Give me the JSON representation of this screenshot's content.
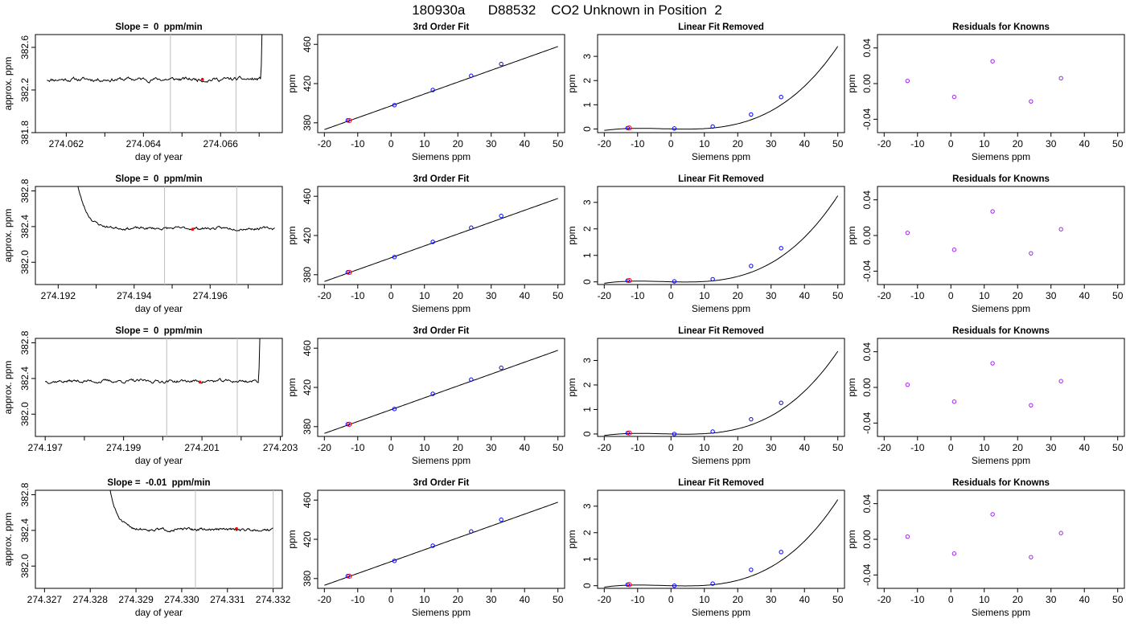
{
  "figure": {
    "title": "180930a      D88532    CO2 Unknown in Position  2"
  },
  "chart_data": [
    {
      "id": "r1-drift",
      "type": "line",
      "title": "Slope =  0  ppm/min",
      "xlabel": "day of year",
      "ylabel": "approx. ppm",
      "xlim": [
        274.0612,
        274.0676
      ],
      "ylim": [
        381.8,
        382.72
      ],
      "xticks": [
        274.062,
        274.063,
        274.064,
        274.065,
        274.066,
        274.067
      ],
      "xticklabels": [
        "274.062",
        "",
        "274.064",
        "",
        "274.066",
        ""
      ],
      "yticks": [
        381.8,
        382.2,
        382.6
      ],
      "yticklabels": [
        "381.8",
        "382.2",
        "382.6"
      ],
      "vlines": [
        274.0647,
        274.0664
      ],
      "highlight": {
        "x": 274.06553,
        "y": 382.3
      },
      "trace": {
        "x0": 274.0615,
        "x1": 274.0671,
        "level": 382.3,
        "noise": 0.012,
        "seed": 11,
        "rise_at": 274.06705,
        "rise_to": 382.9,
        "start_high": null
      }
    },
    {
      "id": "r2-drift",
      "type": "line",
      "title": "Slope =  0  ppm/min",
      "xlabel": "day of year",
      "ylabel": "approx. ppm",
      "xlim": [
        274.1914,
        274.1979
      ],
      "ylim": [
        381.75,
        382.85
      ],
      "xticks": [
        274.192,
        274.193,
        274.194,
        274.195,
        274.196,
        274.197
      ],
      "xticklabels": [
        "274.192",
        "",
        "274.194",
        "",
        "274.196",
        ""
      ],
      "yticks": [
        382.0,
        382.4,
        382.8
      ],
      "yticklabels": [
        "382.0",
        "382.4",
        "382.8"
      ],
      "vlines": [
        274.1948,
        274.1967
      ],
      "highlight": {
        "x": 274.19554,
        "y": 382.37
      },
      "trace": {
        "x0": 274.1925,
        "x1": 274.1977,
        "level": 382.38,
        "noise": 0.01,
        "seed": 23,
        "rise_at": null,
        "rise_to": null,
        "start_high": 382.9
      }
    },
    {
      "id": "r3-drift",
      "type": "line",
      "title": "Slope =  0  ppm/min",
      "xlabel": "day of year",
      "ylabel": "approx. ppm",
      "xlim": [
        274.19675,
        274.20305
      ],
      "ylim": [
        381.75,
        382.85
      ],
      "xticks": [
        274.197,
        274.198,
        274.199,
        274.2,
        274.201,
        274.202,
        274.203
      ],
      "xticklabels": [
        "274.197",
        "",
        "274.199",
        "",
        "274.201",
        "",
        "274.203"
      ],
      "yticks": [
        382.0,
        382.4,
        382.8
      ],
      "yticklabels": [
        "382.0",
        "382.4",
        "382.8"
      ],
      "vlines": [
        274.2001,
        274.2019
      ],
      "highlight": {
        "x": 274.20095,
        "y": 382.36
      },
      "trace": {
        "x0": 274.197,
        "x1": 274.2025,
        "level": 382.37,
        "noise": 0.012,
        "seed": 37,
        "rise_at": 274.20245,
        "rise_to": 382.95,
        "start_high": null
      }
    },
    {
      "id": "r4-drift",
      "type": "line",
      "title": "Slope =  -0.01  ppm/min",
      "xlabel": "day of year",
      "ylabel": "approx. ppm",
      "xlim": [
        274.3268,
        274.3322
      ],
      "ylim": [
        381.75,
        382.85
      ],
      "xticks": [
        274.327,
        274.328,
        274.329,
        274.33,
        274.331,
        274.332
      ],
      "xticklabels": [
        "274.327",
        "274.328",
        "274.329",
        "274.330",
        "274.331",
        "274.332"
      ],
      "yticks": [
        382.0,
        382.4,
        382.8
      ],
      "yticklabels": [
        "382.0",
        "382.4",
        "382.8"
      ],
      "vlines": [
        274.3303,
        274.332
      ],
      "highlight": {
        "x": 274.3312,
        "y": 382.42
      },
      "trace": {
        "x0": 274.3284,
        "x1": 274.332,
        "level": 382.41,
        "noise": 0.01,
        "seed": 51,
        "rise_at": null,
        "rise_to": null,
        "start_high": 382.95
      }
    },
    {
      "id": "r1-fit",
      "type": "scatter",
      "title": "3rd Order Fit",
      "xlabel": "Siemens ppm",
      "ylabel": "ppm",
      "xlim": [
        -22,
        52
      ],
      "ylim": [
        370,
        470
      ],
      "xticks": [
        -20,
        -10,
        0,
        10,
        20,
        30,
        40,
        50
      ],
      "yticks": [
        380,
        420,
        460
      ],
      "points": [
        [
          -13,
          382.5
        ],
        [
          1,
          398.0
        ],
        [
          12.5,
          413.5
        ],
        [
          24,
          428.0
        ],
        [
          33,
          440.0
        ]
      ],
      "highlight": [
        [
          -12.5,
          382.3
        ]
      ],
      "curve": {
        "type": "line",
        "slope": 1.21,
        "intercept": 397.3,
        "from": -20,
        "to": 50
      }
    },
    {
      "id": "r2-fit",
      "type": "scatter",
      "title": "3rd Order Fit",
      "xlabel": "Siemens ppm",
      "ylabel": "ppm",
      "xlim": [
        -22,
        52
      ],
      "ylim": [
        370,
        470
      ],
      "xticks": [
        -20,
        -10,
        0,
        10,
        20,
        30,
        40,
        50
      ],
      "yticks": [
        380,
        420,
        460
      ],
      "points": [
        [
          -13,
          382.5
        ],
        [
          1,
          398.0
        ],
        [
          12.5,
          413.5
        ],
        [
          24,
          428.0
        ],
        [
          33,
          440.0
        ]
      ],
      "highlight": [
        [
          -12.5,
          382.4
        ]
      ],
      "curve": {
        "type": "line",
        "slope": 1.21,
        "intercept": 397.3,
        "from": -20,
        "to": 50
      }
    },
    {
      "id": "r3-fit",
      "type": "scatter",
      "title": "3rd Order Fit",
      "xlabel": "Siemens ppm",
      "ylabel": "ppm",
      "xlim": [
        -22,
        52
      ],
      "ylim": [
        370,
        470
      ],
      "xticks": [
        -20,
        -10,
        0,
        10,
        20,
        30,
        40,
        50
      ],
      "yticks": [
        380,
        420,
        460
      ],
      "points": [
        [
          -13,
          382.5
        ],
        [
          1,
          398.0
        ],
        [
          12.5,
          413.5
        ],
        [
          24,
          428.0
        ],
        [
          33,
          440.0
        ]
      ],
      "highlight": [
        [
          -12.5,
          382.4
        ]
      ],
      "curve": {
        "type": "line",
        "slope": 1.21,
        "intercept": 397.3,
        "from": -20,
        "to": 50
      }
    },
    {
      "id": "r4-fit",
      "type": "scatter",
      "title": "3rd Order Fit",
      "xlabel": "Siemens ppm",
      "ylabel": "ppm",
      "xlim": [
        -22,
        52
      ],
      "ylim": [
        370,
        470
      ],
      "xticks": [
        -20,
        -10,
        0,
        10,
        20,
        30,
        40,
        50
      ],
      "yticks": [
        380,
        420,
        460
      ],
      "points": [
        [
          -13,
          382.5
        ],
        [
          1,
          398.0
        ],
        [
          12.5,
          413.5
        ],
        [
          24,
          428.0
        ],
        [
          33,
          440.0
        ]
      ],
      "highlight": [
        [
          -12.5,
          382.4
        ]
      ],
      "curve": {
        "type": "line",
        "slope": 1.21,
        "intercept": 397.3,
        "from": -20,
        "to": 50
      }
    },
    {
      "id": "r1-linrem",
      "type": "scatter",
      "title": "Linear Fit Removed",
      "xlabel": "Siemens ppm",
      "ylabel": "ppm",
      "xlim": [
        -22,
        52
      ],
      "ylim": [
        -0.15,
        3.9
      ],
      "xticks": [
        -20,
        -10,
        0,
        10,
        20,
        30,
        40,
        50
      ],
      "yticks": [
        0,
        1,
        2,
        3
      ],
      "points": [
        [
          -13,
          0.04
        ],
        [
          1,
          0.02
        ],
        [
          12.5,
          0.1
        ],
        [
          24,
          0.6
        ],
        [
          33,
          1.32
        ]
      ],
      "highlight": [
        [
          -12.5,
          0.04
        ]
      ],
      "curve": {
        "type": "poly",
        "coef": [
          0.0025,
          -0.003,
          0.000185,
          2.48e-05
        ],
        "from": -20,
        "to": 50
      }
    },
    {
      "id": "r2-linrem",
      "type": "scatter",
      "title": "Linear Fit Removed",
      "xlabel": "Siemens ppm",
      "ylabel": "ppm",
      "xlim": [
        -22,
        52
      ],
      "ylim": [
        -0.1,
        3.6
      ],
      "xticks": [
        -20,
        -10,
        0,
        10,
        20,
        30,
        40,
        50
      ],
      "yticks": [
        0,
        1,
        2,
        3
      ],
      "points": [
        [
          -13,
          0.05
        ],
        [
          1,
          0.02
        ],
        [
          12.5,
          0.1
        ],
        [
          24,
          0.6
        ],
        [
          33,
          1.27
        ]
      ],
      "highlight": [
        [
          -12.5,
          0.05
        ]
      ],
      "curve": {
        "type": "poly",
        "coef": [
          0.0025,
          -0.003,
          0.000185,
          2.35e-05
        ],
        "from": -20,
        "to": 50
      }
    },
    {
      "id": "r3-linrem",
      "type": "scatter",
      "title": "Linear Fit Removed",
      "xlabel": "Siemens ppm",
      "ylabel": "ppm",
      "xlim": [
        -22,
        52
      ],
      "ylim": [
        -0.1,
        3.9
      ],
      "xticks": [
        -20,
        -10,
        0,
        10,
        20,
        30,
        40,
        50
      ],
      "yticks": [
        0,
        1,
        2,
        3
      ],
      "points": [
        [
          -13,
          0.04
        ],
        [
          1,
          0.0
        ],
        [
          12.5,
          0.1
        ],
        [
          24,
          0.6
        ],
        [
          33,
          1.27
        ]
      ],
      "highlight": [
        [
          -12.5,
          0.04
        ]
      ],
      "curve": {
        "type": "poly",
        "coef": [
          0.0,
          -0.003,
          0.000185,
          2.45e-05
        ],
        "from": -20,
        "to": 50
      }
    },
    {
      "id": "r4-linrem",
      "type": "scatter",
      "title": "Linear Fit Removed",
      "xlabel": "Siemens ppm",
      "ylabel": "ppm",
      "xlim": [
        -22,
        52
      ],
      "ylim": [
        -0.1,
        3.6
      ],
      "xticks": [
        -20,
        -10,
        0,
        10,
        20,
        30,
        40,
        50
      ],
      "yticks": [
        0,
        1,
        2,
        3
      ],
      "points": [
        [
          -13,
          0.04
        ],
        [
          1,
          0.0
        ],
        [
          12.5,
          0.08
        ],
        [
          24,
          0.6
        ],
        [
          33,
          1.27
        ]
      ],
      "highlight": [
        [
          -12.5,
          0.04
        ]
      ],
      "curve": {
        "type": "poly",
        "coef": [
          0.0,
          -0.003,
          0.000185,
          2.35e-05
        ],
        "from": -20,
        "to": 50
      }
    },
    {
      "id": "r1-resid",
      "type": "scatter",
      "title": "Residuals for Knowns",
      "xlabel": "Siemens ppm",
      "ylabel": "ppm",
      "xlim": [
        -22,
        52
      ],
      "ylim": [
        -0.055,
        0.055
      ],
      "xticks": [
        -20,
        -10,
        0,
        10,
        20,
        30,
        40,
        50
      ],
      "yticks": [
        -0.04,
        0.0,
        0.04
      ],
      "yticklabels": [
        "-0.04",
        "0.00",
        "0.04"
      ],
      "points": [
        [
          -13,
          0.003
        ],
        [
          1,
          -0.015
        ],
        [
          12.5,
          0.025
        ],
        [
          24,
          -0.02
        ],
        [
          33,
          0.006
        ]
      ],
      "highlight": [],
      "curve": null
    },
    {
      "id": "r2-resid",
      "type": "scatter",
      "title": "Residuals for Knowns",
      "xlabel": "Siemens ppm",
      "ylabel": "ppm",
      "xlim": [
        -22,
        52
      ],
      "ylim": [
        -0.055,
        0.055
      ],
      "xticks": [
        -20,
        -10,
        0,
        10,
        20,
        30,
        40,
        50
      ],
      "yticks": [
        -0.04,
        0.0,
        0.04
      ],
      "yticklabels": [
        "-0.04",
        "0.00",
        "0.04"
      ],
      "points": [
        [
          -13,
          0.003
        ],
        [
          1,
          -0.016
        ],
        [
          12.5,
          0.027
        ],
        [
          24,
          -0.02
        ],
        [
          33,
          0.007
        ]
      ],
      "highlight": [],
      "curve": null
    },
    {
      "id": "r3-resid",
      "type": "scatter",
      "title": "Residuals for Knowns",
      "xlabel": "Siemens ppm",
      "ylabel": "ppm",
      "xlim": [
        -22,
        52
      ],
      "ylim": [
        -0.055,
        0.055
      ],
      "xticks": [
        -20,
        -10,
        0,
        10,
        20,
        30,
        40,
        50
      ],
      "yticks": [
        -0.04,
        0.0,
        0.04
      ],
      "yticklabels": [
        "-0.04",
        "0.00",
        "0.04"
      ],
      "points": [
        [
          -13,
          0.003
        ],
        [
          1,
          -0.016
        ],
        [
          12.5,
          0.027
        ],
        [
          24,
          -0.02
        ],
        [
          33,
          0.007
        ]
      ],
      "highlight": [],
      "curve": null
    },
    {
      "id": "r4-resid",
      "type": "scatter",
      "title": "Residuals for Knowns",
      "xlabel": "Siemens ppm",
      "ylabel": "ppm",
      "xlim": [
        -22,
        52
      ],
      "ylim": [
        -0.055,
        0.055
      ],
      "xticks": [
        -20,
        -10,
        0,
        10,
        20,
        30,
        40,
        50
      ],
      "yticks": [
        -0.04,
        0.0,
        0.04
      ],
      "yticklabels": [
        "-0.04",
        "0.00",
        "0.04"
      ],
      "points": [
        [
          -13,
          0.003
        ],
        [
          1,
          -0.016
        ],
        [
          12.5,
          0.028
        ],
        [
          24,
          -0.02
        ],
        [
          33,
          0.007
        ]
      ],
      "highlight": [],
      "curve": null
    }
  ],
  "colors": {
    "point": "#0000ff",
    "highlight": "#ff0000",
    "vline": "#bebebe",
    "line": "#000000",
    "resid_point": "#a020f0"
  }
}
